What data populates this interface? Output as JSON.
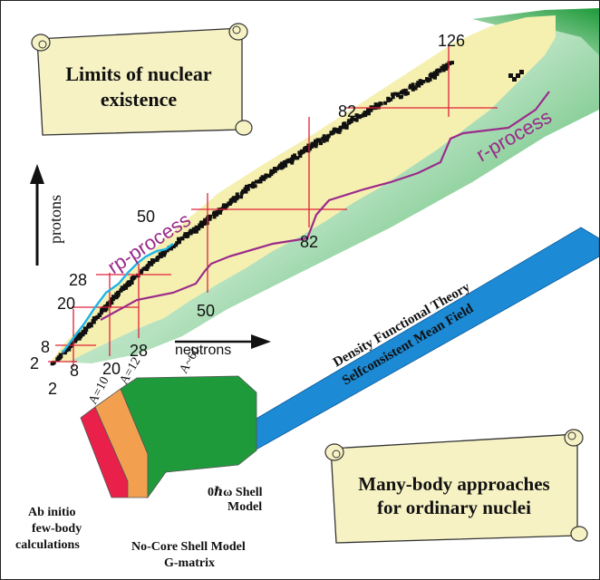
{
  "banners": {
    "top": {
      "line1": "Limits of nuclear",
      "line2": "existence"
    },
    "bottom": {
      "line1": "Many-body approaches",
      "line2": "for ordinary nuclei"
    }
  },
  "axes": {
    "y_label": "protons",
    "x_label": "neutrons"
  },
  "magic_numbers": {
    "proton": [
      "2",
      "8",
      "20",
      "28",
      "50",
      "82"
    ],
    "neutron": [
      "2",
      "8",
      "20",
      "28",
      "50",
      "82",
      "126"
    ]
  },
  "process_labels": {
    "rp": "rp-process",
    "r": "r-process"
  },
  "methods": {
    "dft_line1": "Density Functional Theory",
    "dft_line2": "Selfconsistent Mean Field",
    "a10": "A=10",
    "a12": "A=12",
    "a60": "A~60",
    "shell_line1": "0ℏω Shell",
    "shell_line2": "Model",
    "ab_line1": "Ab initio",
    "ab_line2": "few-body",
    "ab_line3": "calculations",
    "ncsm_line1": "No-Core Shell Model",
    "ncsm_line2": "G-matrix"
  },
  "colors": {
    "ab_initio": "#e8204a",
    "no_core": "#f2a050",
    "shell_model": "#1e9a3a",
    "dft_band": "#1c8ad4",
    "magic_lines": "#e0203a",
    "r_process": "#9a2a8a",
    "rp_process": "#1eb4e6",
    "known_nuclei": "#f5f0b0",
    "banner_fill": "#f6f2c4"
  }
}
